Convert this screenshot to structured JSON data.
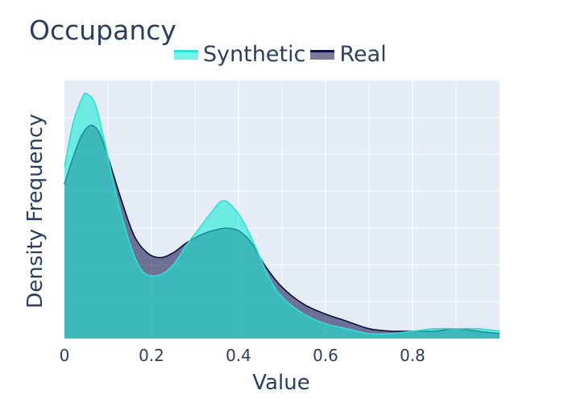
{
  "chart_data": {
    "type": "area",
    "title": "Occupancy",
    "xlabel": "Value",
    "ylabel": "Density Frequency",
    "xlim": [
      0,
      1
    ],
    "ylim": [
      0,
      1.0
    ],
    "x_ticks": [
      0,
      0.2,
      0.4,
      0.6,
      0.8
    ],
    "x_tick_labels": [
      "0",
      "0.2",
      "0.4",
      "0.6",
      "0.8"
    ],
    "grid": true,
    "legend_placement": "top",
    "series": [
      {
        "name": "Synthetic",
        "line_color": "#1de9d6",
        "fill_color": "rgba(29,233,214,0.6)",
        "x": [
          0,
          0.02,
          0.04,
          0.05,
          0.07,
          0.09,
          0.12,
          0.15,
          0.17,
          0.19,
          0.22,
          0.25,
          0.28,
          0.31,
          0.34,
          0.36,
          0.38,
          0.41,
          0.44,
          0.47,
          0.5,
          0.55,
          0.6,
          0.65,
          0.7,
          0.75,
          0.8,
          0.85,
          0.9,
          0.95,
          1.0
        ],
        "y": [
          0.7,
          0.88,
          0.98,
          1.0,
          0.96,
          0.82,
          0.58,
          0.39,
          0.3,
          0.26,
          0.26,
          0.3,
          0.38,
          0.45,
          0.52,
          0.56,
          0.55,
          0.48,
          0.37,
          0.25,
          0.17,
          0.1,
          0.06,
          0.04,
          0.02,
          0.02,
          0.03,
          0.04,
          0.04,
          0.04,
          0.03
        ]
      },
      {
        "name": "Real",
        "line_color": "#0d0d45",
        "fill_color": "rgba(13,13,69,0.55)",
        "x": [
          0,
          0.02,
          0.04,
          0.06,
          0.08,
          0.1,
          0.13,
          0.16,
          0.19,
          0.22,
          0.25,
          0.28,
          0.31,
          0.34,
          0.37,
          0.4,
          0.43,
          0.46,
          0.5,
          0.55,
          0.6,
          0.65,
          0.7,
          0.75,
          0.8,
          0.85,
          0.9,
          0.95,
          1.0
        ],
        "y": [
          0.63,
          0.74,
          0.83,
          0.87,
          0.84,
          0.74,
          0.57,
          0.42,
          0.35,
          0.33,
          0.35,
          0.39,
          0.42,
          0.44,
          0.45,
          0.44,
          0.39,
          0.3,
          0.21,
          0.14,
          0.1,
          0.07,
          0.04,
          0.03,
          0.03,
          0.03,
          0.04,
          0.03,
          0.02
        ]
      }
    ]
  }
}
